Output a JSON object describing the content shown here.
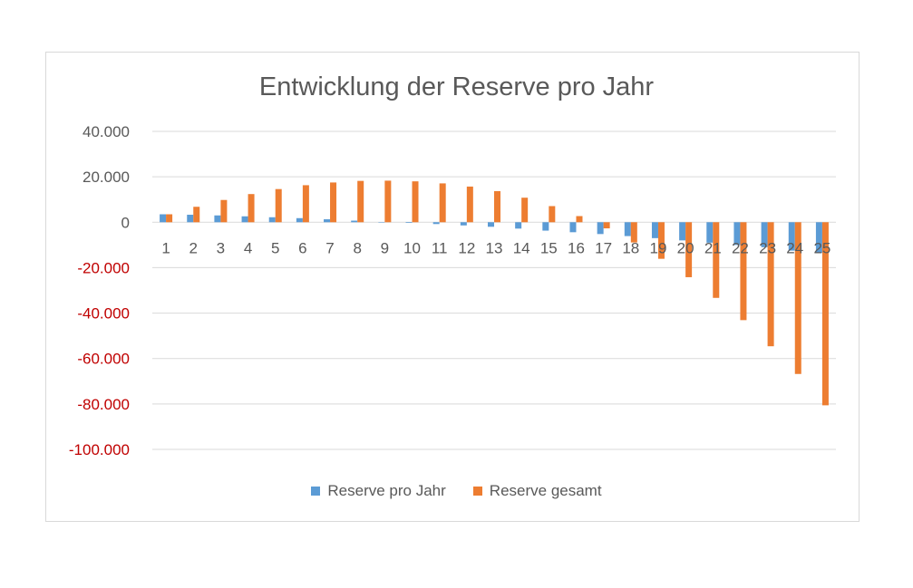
{
  "chart_data": {
    "type": "bar",
    "title": "Entwicklung der Reserve pro Jahr",
    "xlabel": "",
    "ylabel": "",
    "ylim": [
      -100000,
      40000
    ],
    "yticks": [
      {
        "value": 40000,
        "label": "40.000",
        "color": "#595959"
      },
      {
        "value": 20000,
        "label": "20.000",
        "color": "#595959"
      },
      {
        "value": 0,
        "label": "0",
        "color": "#595959"
      },
      {
        "value": -20000,
        "label": "-20.000",
        "color": "#c00000"
      },
      {
        "value": -40000,
        "label": "-40.000",
        "color": "#c00000"
      },
      {
        "value": -60000,
        "label": "-60.000",
        "color": "#c00000"
      },
      {
        "value": -80000,
        "label": "-80.000",
        "color": "#c00000"
      },
      {
        "value": -100000,
        "label": "-100.000",
        "color": "#c00000"
      }
    ],
    "categories": [
      "1",
      "2",
      "3",
      "4",
      "5",
      "6",
      "7",
      "8",
      "9",
      "10",
      "11",
      "12",
      "13",
      "14",
      "15",
      "16",
      "17",
      "18",
      "19",
      "20",
      "21",
      "22",
      "23",
      "24",
      "25"
    ],
    "series": [
      {
        "name": "Reserve pro Jahr",
        "color": "#5b9bd5",
        "values": [
          3500,
          3300,
          3000,
          2600,
          2200,
          1800,
          1300,
          700,
          100,
          -300,
          -800,
          -1400,
          -2000,
          -2800,
          -3700,
          -4400,
          -5200,
          -6100,
          -7000,
          -8000,
          -9000,
          -10000,
          -11000,
          -12500,
          -13500
        ]
      },
      {
        "name": "Reserve gesamt",
        "color": "#ed7d31",
        "values": [
          3500,
          6800,
          9800,
          12400,
          14600,
          16300,
          17500,
          18200,
          18300,
          18000,
          17100,
          15700,
          13700,
          10800,
          7100,
          2700,
          -2700,
          -8900,
          -16100,
          -24200,
          -33300,
          -43100,
          -54600,
          -66800,
          -80600
        ]
      }
    ],
    "grid": true,
    "legend_position": "bottom"
  },
  "legend": {
    "items": [
      {
        "label": "Reserve pro Jahr",
        "color": "#5b9bd5"
      },
      {
        "label": "Reserve gesamt",
        "color": "#ed7d31"
      }
    ]
  }
}
